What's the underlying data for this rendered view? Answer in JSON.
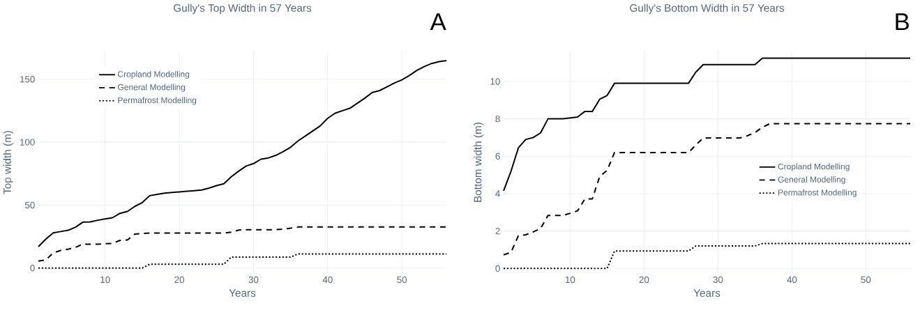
{
  "chart_data": [
    {
      "type": "line",
      "title": "Gully's Top Width in 57 Years",
      "xlabel": "Years",
      "ylabel": "Top width (m)",
      "annotations": [
        "A"
      ],
      "x": [
        1,
        2,
        3,
        4,
        5,
        6,
        7,
        8,
        9,
        10,
        11,
        12,
        13,
        14,
        15,
        16,
        17,
        18,
        19,
        20,
        21,
        22,
        23,
        24,
        25,
        26,
        27,
        28,
        29,
        30,
        31,
        32,
        33,
        34,
        35,
        36,
        37,
        38,
        39,
        40,
        41,
        42,
        43,
        44,
        45,
        46,
        47,
        48,
        49,
        50,
        51,
        52,
        53,
        54,
        55,
        56
      ],
      "series": [
        {
          "name": "Cropland Modelling",
          "color": "#000000",
          "line_style": "solid",
          "values": [
            17,
            23,
            28,
            29,
            30,
            32.5,
            36.5,
            36.7,
            38,
            39,
            40,
            43.5,
            45,
            49,
            52,
            57.5,
            58.5,
            59.5,
            60,
            60.5,
            61,
            61.5,
            62,
            63.5,
            65.5,
            67,
            72.5,
            77,
            81,
            83,
            86.5,
            87.5,
            89.5,
            92.5,
            96,
            101,
            105,
            109,
            113,
            119,
            123,
            125,
            127,
            131,
            135,
            139.5,
            141,
            144,
            147,
            149.5,
            153,
            157,
            160,
            162.5,
            164,
            164.8
          ]
        },
        {
          "name": "General Modelling",
          "color": "#000000",
          "line_style": "dashed",
          "values": [
            5.5,
            6.5,
            12,
            14,
            15,
            16.5,
            19,
            19,
            19,
            19.3,
            19.6,
            22,
            22.3,
            27,
            27.5,
            27.8,
            27.8,
            27.8,
            27.8,
            27.8,
            27.8,
            27.8,
            27.8,
            27.8,
            27.8,
            27.8,
            28.5,
            30.2,
            30.4,
            30.4,
            30.4,
            30.4,
            30.5,
            31,
            31.7,
            32.6,
            32.6,
            32.6,
            32.6,
            32.6,
            32.6,
            32.6,
            32.6,
            32.6,
            32.6,
            32.6,
            32.6,
            32.6,
            32.6,
            32.6,
            32.6,
            32.6,
            32.6,
            32.6,
            32.6,
            32.6
          ]
        },
        {
          "name": "Permafrost Modelling",
          "color": "#000000",
          "line_style": "dotted",
          "values": [
            0,
            0,
            0,
            0,
            0,
            0,
            0,
            0,
            0,
            0,
            0,
            0,
            0,
            0,
            0,
            3,
            3,
            3,
            3,
            3,
            3,
            3,
            3,
            3,
            3,
            3,
            8.7,
            8.7,
            8.7,
            8.7,
            8.7,
            8.7,
            8.7,
            8.7,
            8.7,
            11.2,
            11.2,
            11.2,
            11.2,
            11.2,
            11.2,
            11.2,
            11.2,
            11.2,
            11.2,
            11.2,
            11.2,
            11.2,
            11.2,
            11.2,
            11.2,
            11.2,
            11.2,
            11.2,
            11.2,
            11.2
          ]
        }
      ],
      "xlim": [
        1,
        56
      ],
      "ylim": [
        -4,
        172
      ],
      "xticks": [
        10,
        20,
        30,
        40,
        50
      ],
      "yticks": [
        0,
        50,
        100,
        150
      ],
      "grid": true,
      "legend": "top left"
    },
    {
      "type": "line",
      "title": "Gully's Bottom Width in 57 Years",
      "xlabel": "Years",
      "ylabel": "Bottom width (m)",
      "annotations": [
        "B"
      ],
      "x": [
        1,
        2,
        3,
        4,
        5,
        6,
        7,
        8,
        9,
        10,
        11,
        12,
        13,
        14,
        15,
        16,
        17,
        18,
        19,
        20,
        21,
        22,
        23,
        24,
        25,
        26,
        27,
        28,
        29,
        30,
        31,
        32,
        33,
        34,
        35,
        36,
        37,
        38,
        39,
        40,
        41,
        42,
        43,
        44,
        45,
        46,
        47,
        48,
        49,
        50,
        51,
        52,
        53,
        54,
        55,
        56
      ],
      "series": [
        {
          "name": "Cropland Modelling",
          "color": "#000000",
          "line_style": "solid",
          "values": [
            4.15,
            5.2,
            6.45,
            6.9,
            7.0,
            7.25,
            8.0,
            8.0,
            8.0,
            8.05,
            8.1,
            8.4,
            8.4,
            9.05,
            9.25,
            9.9,
            9.9,
            9.9,
            9.9,
            9.9,
            9.9,
            9.9,
            9.9,
            9.9,
            9.9,
            9.9,
            10.5,
            10.9,
            10.9,
            10.9,
            10.9,
            10.9,
            10.9,
            10.9,
            10.9,
            11.25,
            11.25,
            11.25,
            11.25,
            11.25,
            11.25,
            11.25,
            11.25,
            11.25,
            11.25,
            11.25,
            11.25,
            11.25,
            11.25,
            11.25,
            11.25,
            11.25,
            11.25,
            11.25,
            11.25,
            11.25
          ]
        },
        {
          "name": "General Modelling",
          "color": "#000000",
          "line_style": "dashed",
          "values": [
            0.73,
            0.86,
            1.75,
            1.8,
            1.95,
            2.13,
            2.83,
            2.83,
            2.83,
            2.95,
            3.08,
            3.72,
            3.72,
            4.92,
            5.24,
            6.2,
            6.2,
            6.2,
            6.2,
            6.2,
            6.2,
            6.2,
            6.2,
            6.2,
            6.2,
            6.2,
            6.6,
            6.98,
            6.98,
            6.98,
            6.98,
            6.98,
            6.98,
            7.1,
            7.27,
            7.55,
            7.74,
            7.74,
            7.74,
            7.74,
            7.74,
            7.74,
            7.74,
            7.74,
            7.74,
            7.74,
            7.74,
            7.74,
            7.74,
            7.74,
            7.74,
            7.74,
            7.74,
            7.74,
            7.74,
            7.74
          ]
        },
        {
          "name": "Permafrost Modelling",
          "color": "#000000",
          "line_style": "dotted",
          "values": [
            0,
            0,
            0,
            0,
            0,
            0,
            0,
            0,
            0,
            0,
            0,
            0,
            0,
            0,
            0,
            0.93,
            0.93,
            0.93,
            0.93,
            0.93,
            0.93,
            0.93,
            0.93,
            0.93,
            0.93,
            0.93,
            1.2,
            1.2,
            1.2,
            1.2,
            1.2,
            1.2,
            1.2,
            1.2,
            1.2,
            1.33,
            1.33,
            1.33,
            1.33,
            1.33,
            1.33,
            1.33,
            1.33,
            1.33,
            1.33,
            1.33,
            1.33,
            1.33,
            1.33,
            1.33,
            1.33,
            1.33,
            1.33,
            1.33,
            1.33,
            1.33
          ]
        }
      ],
      "xlim": [
        1,
        56
      ],
      "ylim": [
        -0.25,
        11.6
      ],
      "xticks": [
        10,
        20,
        30,
        40,
        50
      ],
      "yticks": [
        0,
        2,
        4,
        6,
        8,
        10
      ],
      "grid": true,
      "legend": "right"
    }
  ]
}
